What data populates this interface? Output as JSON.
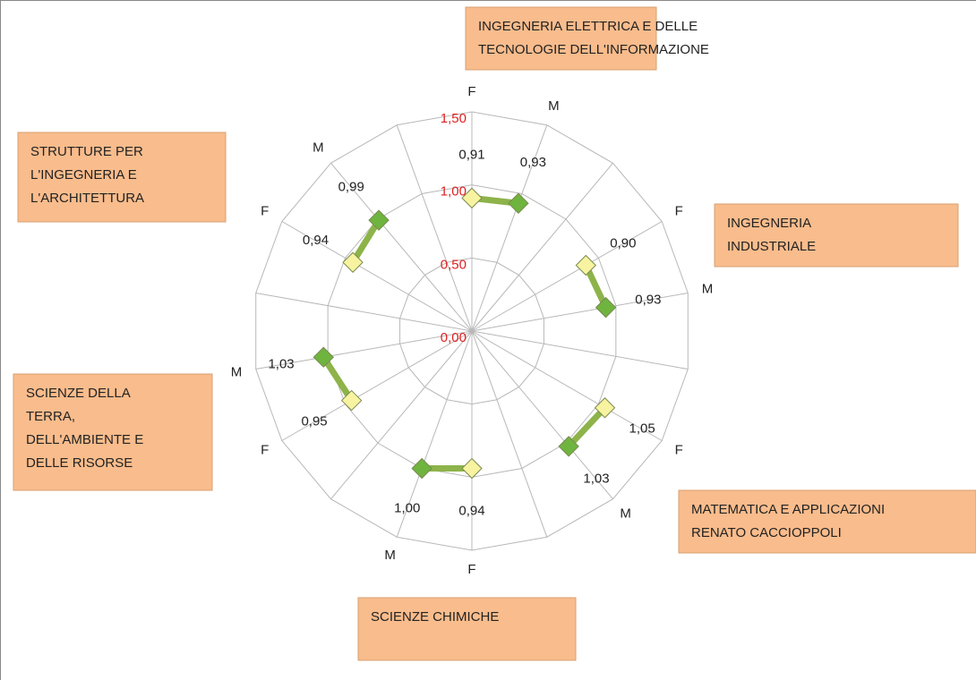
{
  "chart_data": {
    "type": "radar",
    "categories": [
      "F",
      "M",
      null,
      "F",
      "M",
      null,
      "F",
      "M",
      null,
      "F",
      "M",
      null,
      "F",
      "M",
      null,
      "F",
      "M",
      null
    ],
    "series": [
      {
        "color": "#8db34a",
        "values": [
          0.91,
          0.93,
          null,
          0.9,
          0.93,
          null,
          1.05,
          1.03,
          null,
          0.94,
          1.0,
          null,
          0.95,
          1.03,
          null,
          0.94,
          0.99,
          null
        ],
        "value_labels": [
          "0,91",
          "0,93",
          null,
          "0,90",
          "0,93",
          null,
          "1,05",
          "1,03",
          null,
          "0,94",
          "1,00",
          null,
          "0,95",
          "1,03",
          null,
          "0,94",
          "0,99",
          null
        ],
        "point_colors": [
          "#f7f3a0",
          "#6fb43f",
          null,
          "#f7f3a0",
          "#6fb43f",
          null,
          "#f7f3a0",
          "#6fb43f",
          null,
          "#f7f3a0",
          "#6fb43f",
          null,
          "#f7f3a0",
          "#6fb43f",
          null,
          "#f7f3a0",
          "#6fb43f",
          null
        ]
      }
    ],
    "ylim": [
      0,
      1.5
    ],
    "yticks": [
      {
        "value": 0,
        "label": "0,00"
      },
      {
        "value": 0.5,
        "label": "0,50"
      },
      {
        "value": 1,
        "label": "1,00"
      },
      {
        "value": 1.5,
        "label": "1,50"
      }
    ],
    "grid": true,
    "annotations": [
      {
        "lines": [
          "INGEGNERIA ELETTRICA E DELLE",
          "TECNOLOGIE DELL'INFORMAZIONE"
        ]
      },
      {
        "lines": [
          "INGEGNERIA",
          "INDUSTRIALE"
        ]
      },
      {
        "lines": [
          "MATEMATICA E APPLICAZIONI",
          "RENATO CACCIOPPOLI"
        ]
      },
      {
        "lines": [
          "SCIENZE CHIMICHE"
        ]
      },
      {
        "lines": [
          "SCIENZE  DELLA",
          "TERRA,",
          "DELL'AMBIENTE E",
          "DELLE RISORSE"
        ]
      },
      {
        "lines": [
          "STRUTTURE PER",
          "L'INGEGNERIA E",
          "L'ARCHITETTURA"
        ]
      }
    ],
    "annotation_color": "#f9bc8c"
  }
}
